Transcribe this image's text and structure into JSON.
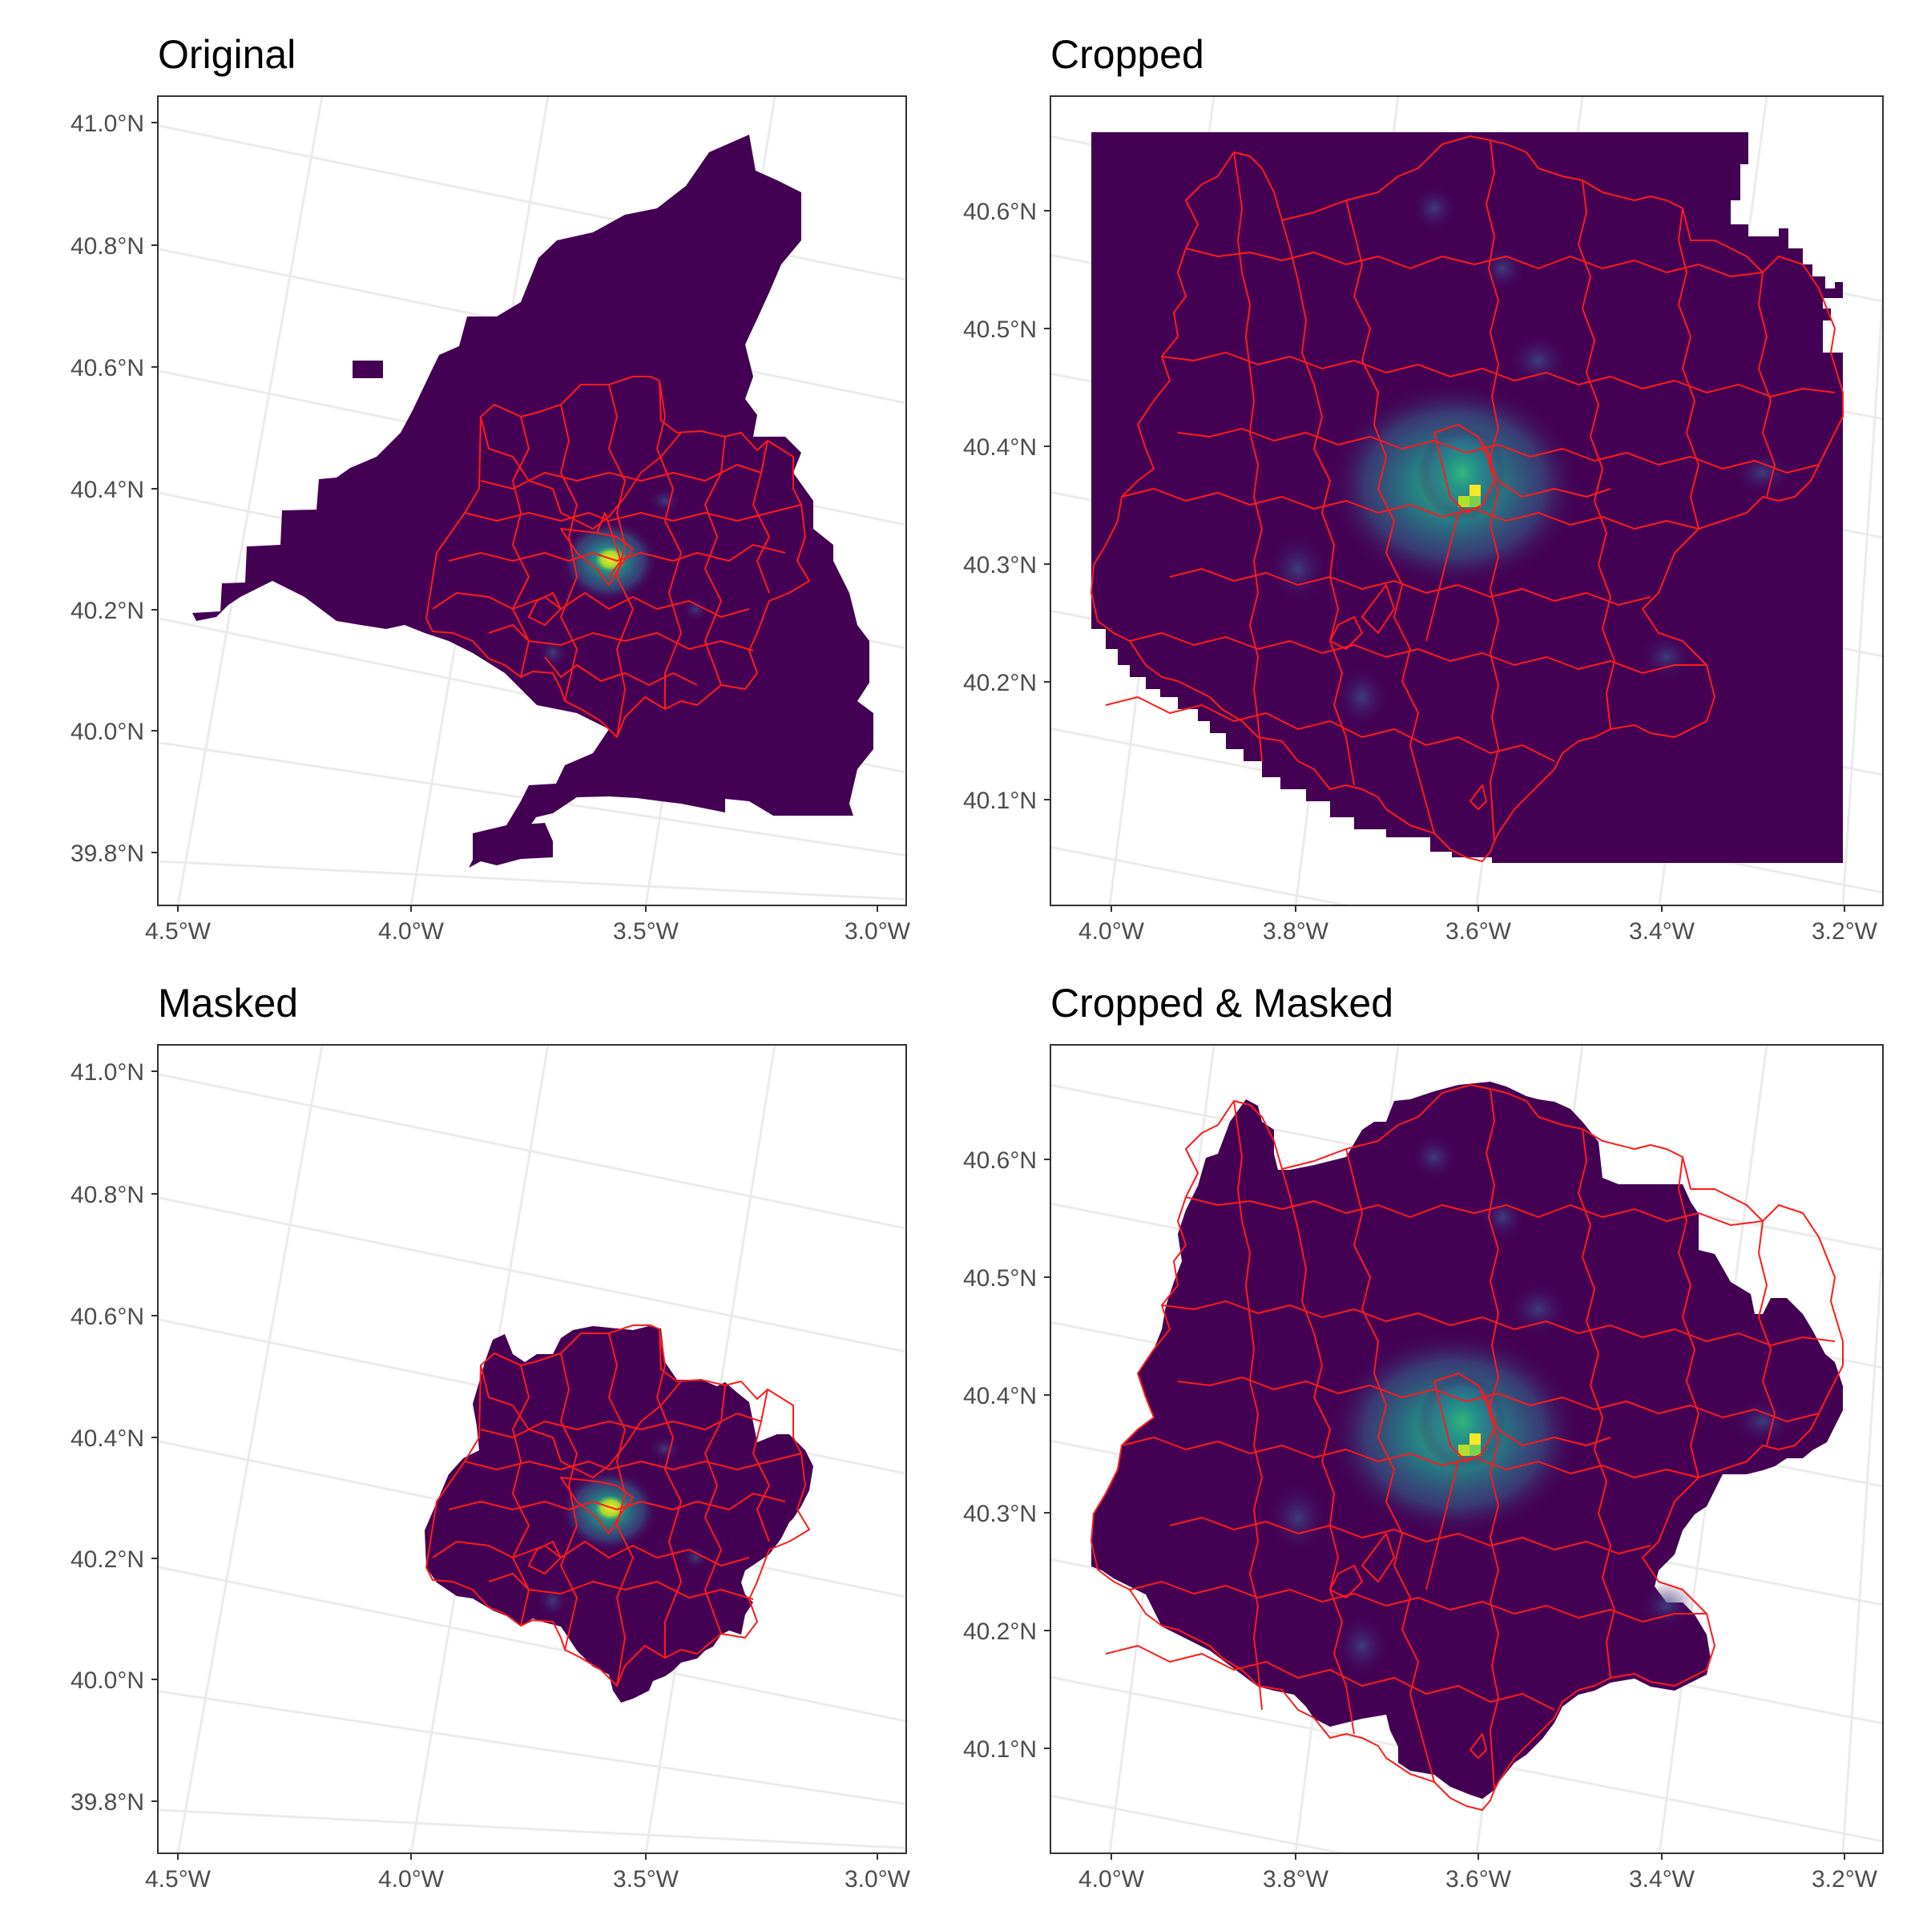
{
  "figure": {
    "colors": {
      "raster_low": "#440154",
      "raster_mid": "#31688e",
      "raster_high": "#35b779",
      "raster_peak": "#fde725",
      "boundaries": "#ff0000",
      "gridlines": "#ebebeb",
      "panel_border": "#333333"
    },
    "panels": [
      {
        "title": "Original",
        "x_ticks": [
          "4.5°W",
          "4.0°W",
          "3.5°W",
          "3.0°W"
        ],
        "y_ticks": [
          "41.0°N",
          "40.8°N",
          "40.6°N",
          "40.4°N",
          "40.2°N",
          "40.0°N",
          "39.8°N"
        ]
      },
      {
        "title": "Cropped",
        "x_ticks": [
          "4.0°W",
          "3.8°W",
          "3.6°W",
          "3.4°W",
          "3.2°W"
        ],
        "y_ticks": [
          "40.6°N",
          "40.5°N",
          "40.4°N",
          "40.3°N",
          "40.2°N",
          "40.1°N"
        ]
      },
      {
        "title": "Masked",
        "x_ticks": [
          "4.5°W",
          "4.0°W",
          "3.5°W",
          "3.0°W"
        ],
        "y_ticks": [
          "41.0°N",
          "40.8°N",
          "40.6°N",
          "40.4°N",
          "40.2°N",
          "40.0°N",
          "39.8°N"
        ]
      },
      {
        "title": "Cropped & Masked",
        "x_ticks": [
          "4.0°W",
          "3.8°W",
          "3.6°W",
          "3.4°W",
          "3.2°W"
        ],
        "y_ticks": [
          "40.6°N",
          "40.5°N",
          "40.4°N",
          "40.3°N",
          "40.2°N",
          "40.1°N"
        ]
      }
    ]
  }
}
